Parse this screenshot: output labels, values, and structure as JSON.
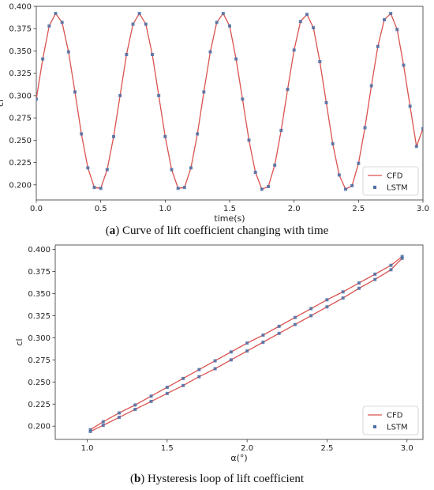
{
  "chart_data": [
    {
      "type": "line",
      "caption_label": "a",
      "caption_text": "Curve of lift coefficient changing with time",
      "xlabel": "time(s)",
      "ylabel": "cl",
      "xlim": [
        0.0,
        3.0
      ],
      "ylim": [
        0.183,
        0.4
      ],
      "xticks": [
        "0.0",
        "0.5",
        "1.0",
        "1.5",
        "2.0",
        "2.5",
        "3.0"
      ],
      "yticks": [
        "0.200",
        "0.225",
        "0.250",
        "0.275",
        "0.300",
        "0.325",
        "0.350",
        "0.375",
        "0.400"
      ],
      "legend_position": "lower-right",
      "series": [
        {
          "name": "CFD",
          "style": "line",
          "color": "#d9534f",
          "x": [
            0.0,
            0.05,
            0.1,
            0.15,
            0.2,
            0.25,
            0.3,
            0.35,
            0.4,
            0.45,
            0.5,
            0.55,
            0.6,
            0.65,
            0.7,
            0.75,
            0.8,
            0.85,
            0.9,
            0.95,
            1.0,
            1.05,
            1.1,
            1.15,
            1.2,
            1.25,
            1.3,
            1.35,
            1.4,
            1.45,
            1.5,
            1.55,
            1.6,
            1.65,
            1.7,
            1.75,
            1.8,
            1.85,
            1.9,
            1.95,
            2.0,
            2.05,
            2.1,
            2.15,
            2.2,
            2.25,
            2.3,
            2.35,
            2.4,
            2.45,
            2.5,
            2.55,
            2.6,
            2.65,
            2.7,
            2.75,
            2.8,
            2.85,
            2.9,
            2.95,
            3.0
          ],
          "y": [
            0.296,
            0.341,
            0.378,
            0.392,
            0.382,
            0.349,
            0.304,
            0.257,
            0.219,
            0.197,
            0.196,
            0.217,
            0.254,
            0.3,
            0.346,
            0.38,
            0.392,
            0.38,
            0.346,
            0.3,
            0.254,
            0.217,
            0.196,
            0.197,
            0.219,
            0.257,
            0.304,
            0.349,
            0.382,
            0.392,
            0.378,
            0.341,
            0.296,
            0.25,
            0.214,
            0.195,
            0.198,
            0.222,
            0.261,
            0.307,
            0.351,
            0.383,
            0.391,
            0.376,
            0.338,
            0.292,
            0.246,
            0.211,
            0.195,
            0.199,
            0.224,
            0.264,
            0.311,
            0.355,
            0.385,
            0.392,
            0.374,
            0.334,
            0.288,
            0.243,
            0.263
          ]
        },
        {
          "name": "LSTM",
          "style": "marker",
          "color": "#4a6fa5",
          "x": [
            0.0,
            0.05,
            0.1,
            0.15,
            0.2,
            0.25,
            0.3,
            0.35,
            0.4,
            0.45,
            0.5,
            0.55,
            0.6,
            0.65,
            0.7,
            0.75,
            0.8,
            0.85,
            0.9,
            0.95,
            1.0,
            1.05,
            1.1,
            1.15,
            1.2,
            1.25,
            1.3,
            1.35,
            1.4,
            1.45,
            1.5,
            1.55,
            1.6,
            1.65,
            1.7,
            1.75,
            1.8,
            1.85,
            1.9,
            1.95,
            2.0,
            2.05,
            2.1,
            2.15,
            2.2,
            2.25,
            2.3,
            2.35,
            2.4,
            2.45,
            2.5,
            2.55,
            2.6,
            2.65,
            2.7,
            2.75,
            2.8,
            2.85,
            2.9,
            2.95,
            3.0
          ],
          "y": [
            0.296,
            0.341,
            0.378,
            0.392,
            0.382,
            0.349,
            0.304,
            0.257,
            0.219,
            0.197,
            0.196,
            0.217,
            0.254,
            0.3,
            0.346,
            0.38,
            0.392,
            0.38,
            0.346,
            0.3,
            0.254,
            0.217,
            0.196,
            0.197,
            0.219,
            0.257,
            0.304,
            0.349,
            0.382,
            0.392,
            0.378,
            0.341,
            0.296,
            0.25,
            0.214,
            0.195,
            0.198,
            0.222,
            0.261,
            0.307,
            0.351,
            0.383,
            0.391,
            0.376,
            0.338,
            0.292,
            0.246,
            0.211,
            0.195,
            0.199,
            0.224,
            0.264,
            0.311,
            0.355,
            0.385,
            0.392,
            0.374,
            0.334,
            0.288,
            0.243,
            0.263
          ]
        }
      ]
    },
    {
      "type": "scatter",
      "caption_label": "b",
      "caption_text": "Hysteresis loop of lift coefficient",
      "xlabel": "α(°)",
      "ylabel": "cl",
      "xlim": [
        0.8,
        3.1
      ],
      "ylim": [
        0.185,
        0.405
      ],
      "xticks": [
        "1.0",
        "1.5",
        "2.0",
        "2.5",
        "3.0"
      ],
      "yticks": [
        "0.200",
        "0.225",
        "0.250",
        "0.275",
        "0.300",
        "0.325",
        "0.350",
        "0.375",
        "0.400"
      ],
      "legend_position": "lower-right",
      "series": [
        {
          "name": "CFD",
          "style": "line",
          "color": "#d9534f",
          "branches": [
            {
              "x": [
                1.02,
                1.1,
                1.2,
                1.3,
                1.4,
                1.5,
                1.6,
                1.7,
                1.8,
                1.9,
                2.0,
                2.1,
                2.2,
                2.3,
                2.4,
                2.5,
                2.6,
                2.7,
                2.8,
                2.9,
                2.97
              ],
              "y": [
                0.196,
                0.205,
                0.215,
                0.224,
                0.234,
                0.244,
                0.254,
                0.264,
                0.274,
                0.284,
                0.294,
                0.303,
                0.313,
                0.323,
                0.333,
                0.343,
                0.352,
                0.362,
                0.372,
                0.382,
                0.392
              ]
            },
            {
              "x": [
                1.02,
                1.1,
                1.2,
                1.3,
                1.4,
                1.5,
                1.6,
                1.7,
                1.8,
                1.9,
                2.0,
                2.1,
                2.2,
                2.3,
                2.4,
                2.5,
                2.6,
                2.7,
                2.8,
                2.9,
                2.97
              ],
              "y": [
                0.194,
                0.201,
                0.21,
                0.219,
                0.228,
                0.237,
                0.246,
                0.256,
                0.265,
                0.275,
                0.285,
                0.295,
                0.305,
                0.315,
                0.325,
                0.335,
                0.345,
                0.356,
                0.366,
                0.377,
                0.39
              ]
            }
          ]
        },
        {
          "name": "LSTM",
          "style": "marker",
          "color": "#4a6fa5",
          "branches": [
            {
              "x": [
                1.02,
                1.1,
                1.2,
                1.3,
                1.4,
                1.5,
                1.6,
                1.7,
                1.8,
                1.9,
                2.0,
                2.1,
                2.2,
                2.3,
                2.4,
                2.5,
                2.6,
                2.7,
                2.8,
                2.9,
                2.97
              ],
              "y": [
                0.196,
                0.205,
                0.215,
                0.224,
                0.234,
                0.244,
                0.254,
                0.264,
                0.274,
                0.284,
                0.294,
                0.303,
                0.313,
                0.323,
                0.333,
                0.343,
                0.352,
                0.362,
                0.372,
                0.382,
                0.392
              ]
            },
            {
              "x": [
                1.02,
                1.1,
                1.2,
                1.3,
                1.4,
                1.5,
                1.6,
                1.7,
                1.8,
                1.9,
                2.0,
                2.1,
                2.2,
                2.3,
                2.4,
                2.5,
                2.6,
                2.7,
                2.8,
                2.9,
                2.97
              ],
              "y": [
                0.194,
                0.201,
                0.21,
                0.219,
                0.228,
                0.237,
                0.246,
                0.256,
                0.265,
                0.275,
                0.285,
                0.295,
                0.305,
                0.315,
                0.325,
                0.335,
                0.345,
                0.356,
                0.366,
                0.377,
                0.39
              ]
            }
          ]
        }
      ]
    }
  ]
}
